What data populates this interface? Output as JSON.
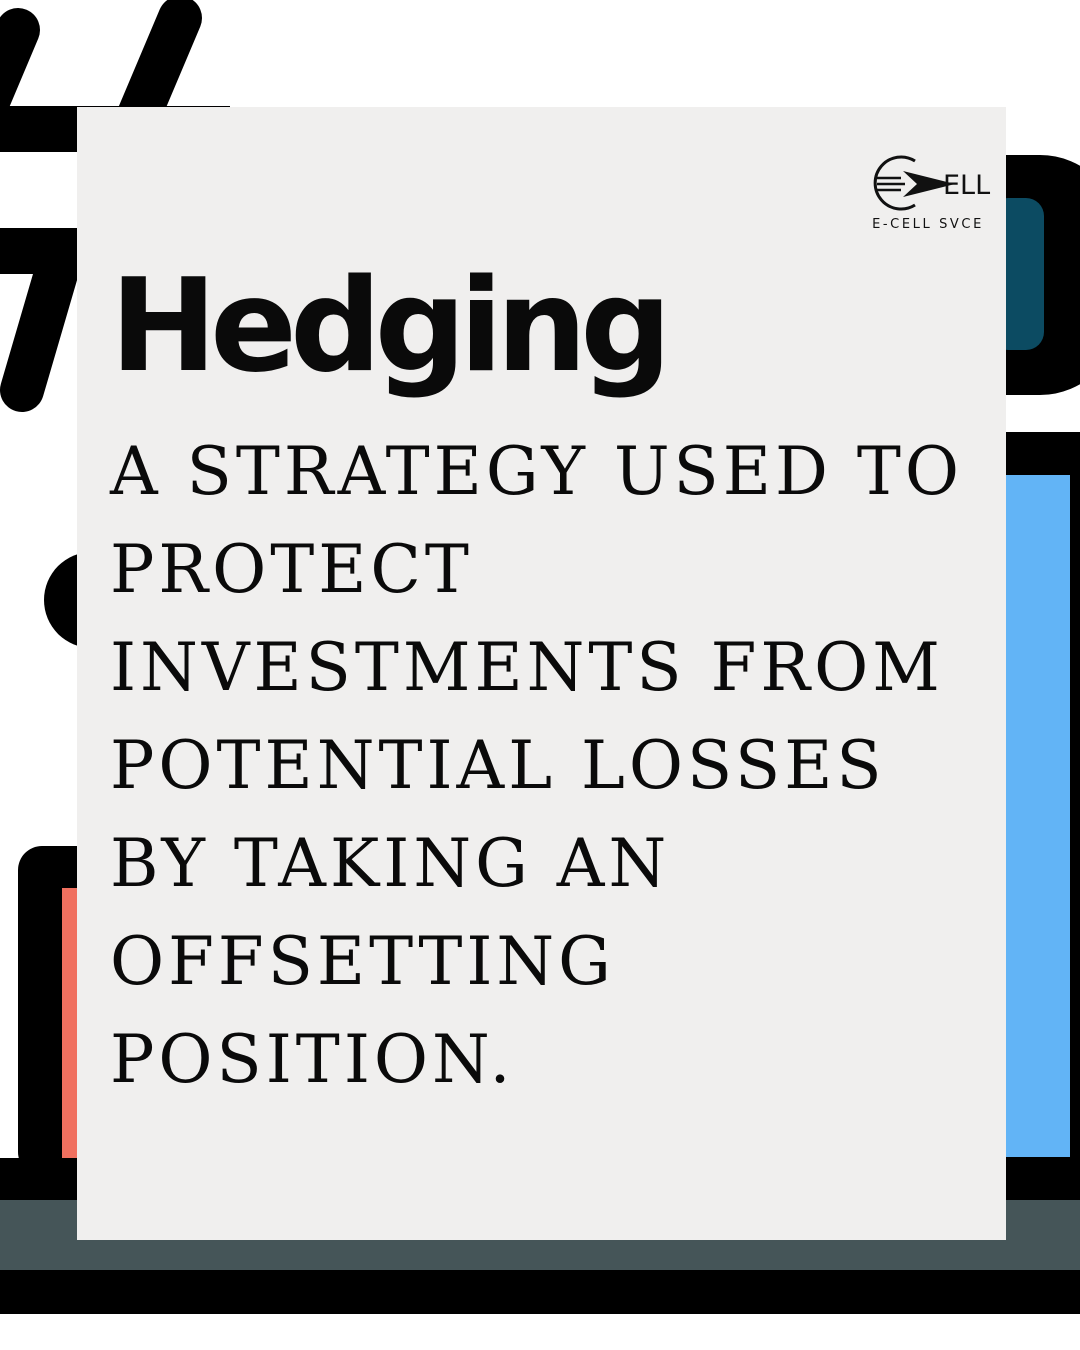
{
  "logo": {
    "mark_text": "ELL",
    "caption": "E-CELL SVCE"
  },
  "title": "Hedging",
  "definition": "A STRATEGY USED TO PROTECT INVESTMENTS FROM POTENTIAL LOSSES BY TAKING AN OFFSETTING POSITION.",
  "colors": {
    "card": "#f0efee",
    "ink": "#0a0a0a",
    "accent_blue": "#62b4f6",
    "accent_red": "#f0705f",
    "accent_teal": "#0c4b62",
    "slate": "#455558"
  }
}
